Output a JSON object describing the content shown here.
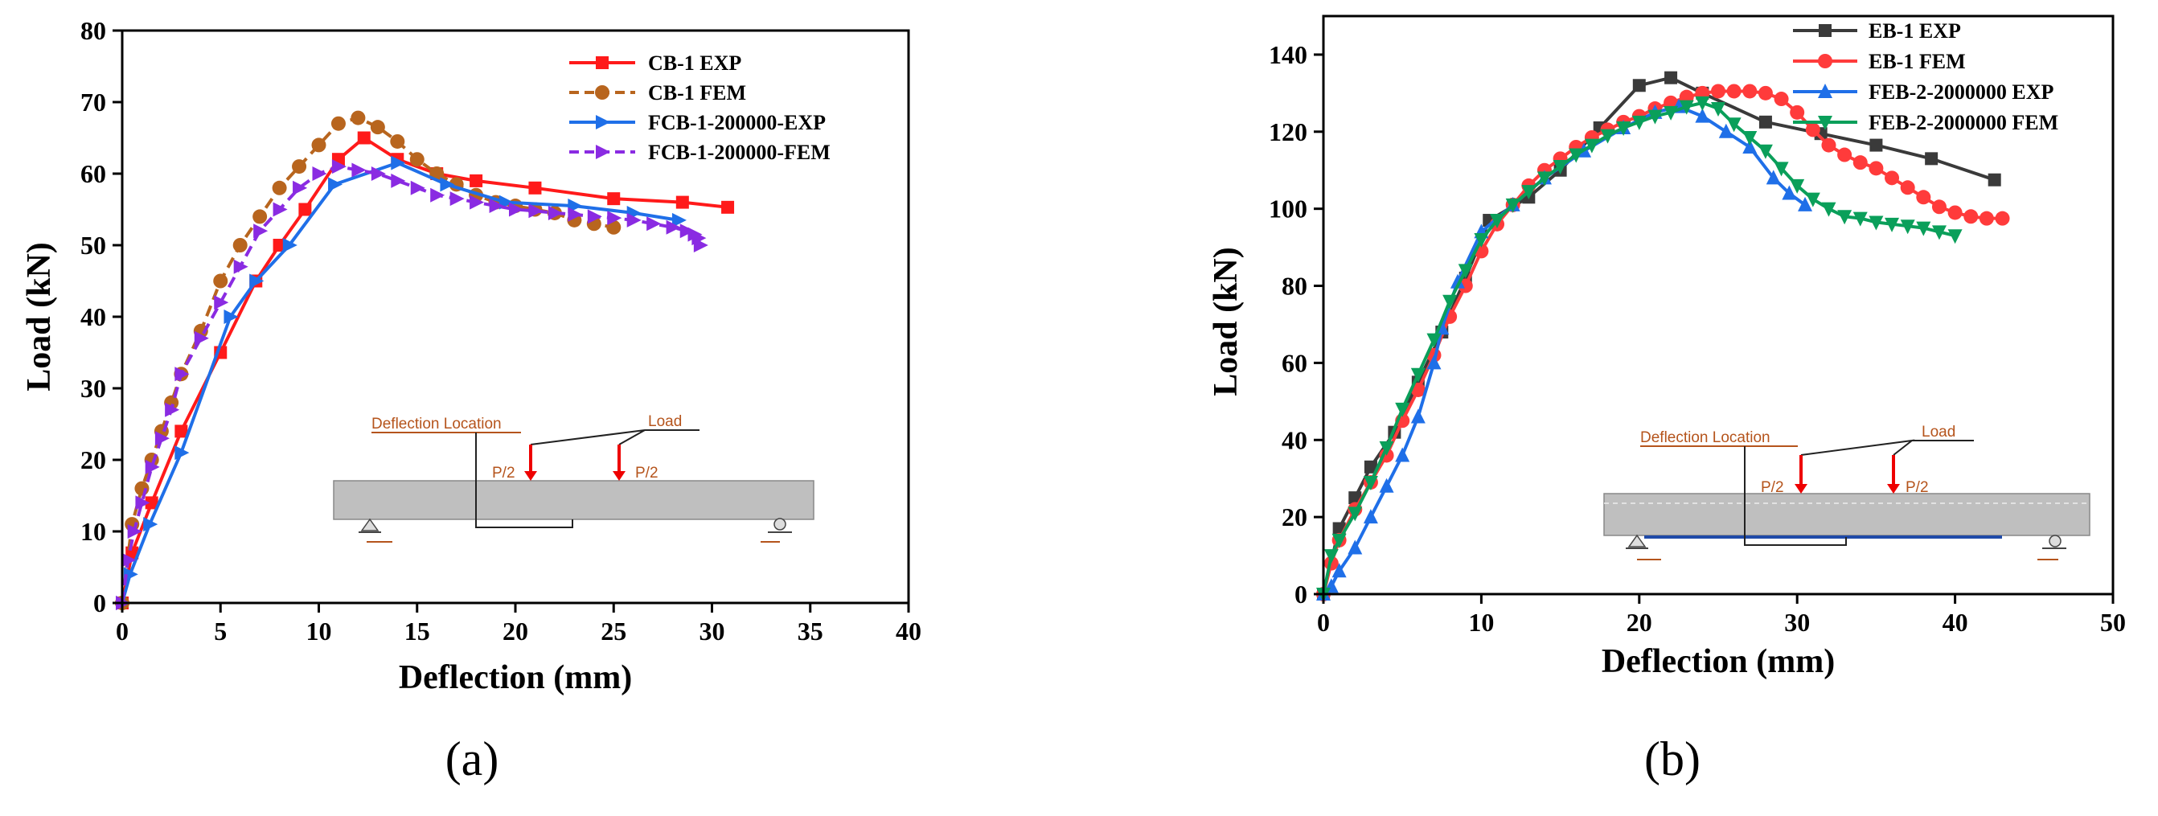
{
  "chart_data": [
    {
      "type": "line",
      "panel_label": "(a)",
      "xlabel": "Deflection (mm)",
      "ylabel": "Load (kN)",
      "xlim": [
        0,
        40
      ],
      "ylim": [
        0,
        80
      ],
      "xticks": [
        0,
        5,
        10,
        15,
        20,
        25,
        30,
        35,
        40
      ],
      "yticks": [
        0,
        10,
        20,
        30,
        40,
        50,
        60,
        70,
        80
      ],
      "legend_position": "top-right",
      "series": [
        {
          "name": "CB-1 EXP",
          "color": "#ff1a1a",
          "marker": "square",
          "dashed": false,
          "x": [
            0,
            0.5,
            1.5,
            3,
            5,
            6.8,
            8,
            9.3,
            11,
            12.3,
            14,
            16,
            18,
            21,
            25,
            28.5,
            30.8
          ],
          "y": [
            0,
            7,
            14,
            24,
            35,
            45,
            50,
            55,
            62,
            65,
            62,
            60,
            59,
            58,
            56.5,
            56,
            55.3
          ]
        },
        {
          "name": "CB-1 FEM",
          "color": "#b8651e",
          "marker": "circle",
          "dashed": true,
          "x": [
            0,
            0.5,
            1,
            1.5,
            2,
            2.5,
            3,
            4,
            5,
            6,
            7,
            8,
            9,
            10,
            11,
            12,
            13,
            14,
            15,
            16,
            17,
            18,
            19,
            20,
            21,
            22,
            23,
            24,
            25
          ],
          "y": [
            0,
            11,
            16,
            20,
            24,
            28,
            32,
            38,
            45,
            50,
            54,
            58,
            61,
            64,
            67,
            67.8,
            66.5,
            64.5,
            62,
            60,
            58.5,
            57,
            56,
            55.5,
            55,
            54.5,
            53.5,
            53,
            52.5
          ]
        },
        {
          "name": "FCB-1-200000-EXP",
          "color": "#1f6fe8",
          "marker": "triangle-right",
          "dashed": false,
          "x": [
            0,
            0.4,
            1.4,
            3,
            5.5,
            6.8,
            8.5,
            10.8,
            14,
            16.5,
            19.5,
            23,
            26,
            28.3
          ],
          "y": [
            0,
            4,
            11,
            21,
            40,
            45,
            50,
            58.5,
            61.5,
            58.5,
            56,
            55.5,
            54.5,
            53.5
          ]
        },
        {
          "name": "FCB-1-200000-FEM",
          "color": "#8a2be2",
          "marker": "triangle-right",
          "dashed": true,
          "x": [
            0,
            0.3,
            0.6,
            1,
            1.5,
            2,
            2.5,
            3,
            4,
            5,
            6,
            7,
            8,
            9,
            10,
            11,
            12,
            13,
            14,
            15,
            16,
            17,
            18,
            19,
            20,
            21,
            22,
            23,
            24,
            25,
            26,
            27,
            28,
            28.7,
            29.1,
            29.3,
            29.4
          ],
          "y": [
            0,
            6,
            10,
            14,
            19,
            23,
            27,
            32,
            37,
            42,
            47,
            52,
            55,
            58,
            60,
            61,
            60.5,
            60,
            59,
            58,
            57,
            56.5,
            56,
            55.5,
            55,
            54.8,
            54.5,
            54.3,
            54,
            53.8,
            53.5,
            53,
            52.5,
            52,
            51.5,
            51,
            50
          ]
        }
      ],
      "inset": {
        "deflection_label": "Deflection Location",
        "load_label": "Load",
        "p_half_label": "P/2"
      }
    },
    {
      "type": "line",
      "panel_label": "(b)",
      "xlabel": "Deflection (mm)",
      "ylabel": "Load (kN)",
      "xlim": [
        0,
        50
      ],
      "ylim": [
        0,
        150
      ],
      "xticks": [
        0,
        10,
        20,
        30,
        40,
        50
      ],
      "yticks": [
        0,
        20,
        40,
        60,
        80,
        100,
        120,
        140
      ],
      "legend_position": "top-right",
      "series": [
        {
          "name": "EB-1 EXP",
          "color": "#3a3a3a",
          "marker": "square",
          "dashed": false,
          "x": [
            0,
            1,
            2,
            3,
            4.5,
            6,
            7.5,
            9,
            10.5,
            13,
            15,
            17.5,
            20,
            22,
            24,
            28,
            31.5,
            35,
            38.5,
            42.5
          ],
          "y": [
            0,
            17,
            25,
            33,
            42,
            55,
            68,
            82,
            97,
            103,
            110,
            121,
            132,
            134,
            130,
            122.5,
            119.5,
            116.5,
            113,
            107.5
          ]
        },
        {
          "name": "EB-1 FEM",
          "color": "#ff3b3b",
          "marker": "circle",
          "dashed": false,
          "x": [
            0,
            0.5,
            1,
            2,
            3,
            4,
            5,
            6,
            7,
            8,
            9,
            10,
            11,
            12,
            13,
            14,
            15,
            16,
            17,
            18,
            19,
            20,
            21,
            22,
            23,
            24,
            25,
            26,
            27,
            28,
            29,
            30,
            31,
            32,
            33,
            34,
            35,
            36,
            37,
            38,
            39,
            40,
            41,
            42,
            43
          ],
          "y": [
            0,
            8,
            14,
            22,
            29,
            36,
            45,
            53,
            62,
            72,
            80,
            89,
            96,
            101,
            106,
            110,
            113,
            116,
            118.5,
            120.5,
            122.5,
            124,
            126,
            127.5,
            129,
            130,
            130.5,
            130.5,
            130.5,
            130,
            128.5,
            125,
            120.5,
            116.5,
            114,
            112,
            110.5,
            108,
            105.5,
            103,
            100.5,
            99,
            98,
            97.5,
            97.5
          ]
        },
        {
          "name": "FEB-2-2000000 EXP",
          "color": "#1f6fe8",
          "marker": "triangle-up",
          "dashed": false,
          "x": [
            0,
            0.5,
            1,
            2,
            3,
            4,
            5,
            6,
            7,
            7.5,
            8.5,
            10,
            12,
            14,
            16.5,
            19,
            21,
            22.5,
            24,
            25.5,
            27,
            28.5,
            29.5,
            30.5
          ],
          "y": [
            0,
            2,
            6,
            12,
            20,
            28,
            36,
            46,
            60,
            69,
            81,
            94,
            101,
            108,
            115,
            121,
            125,
            126.5,
            124,
            120,
            116,
            108,
            104,
            101
          ]
        },
        {
          "name": "FEB-2-2000000 FEM",
          "color": "#0a9f5a",
          "marker": "triangle-down",
          "dashed": false,
          "x": [
            0,
            0.5,
            1,
            2,
            3,
            4,
            5,
            6,
            7,
            8,
            9,
            10,
            11,
            12,
            13,
            14,
            15,
            16,
            17,
            18,
            19,
            20,
            21,
            22,
            23,
            24,
            25,
            26,
            27,
            28,
            29,
            30,
            31,
            32,
            33,
            34,
            35,
            36,
            37,
            38,
            39,
            40
          ],
          "y": [
            0,
            10,
            14,
            21,
            29,
            38,
            48,
            57,
            66,
            76,
            84,
            92,
            97,
            101,
            104.5,
            108,
            111,
            114,
            116.5,
            119,
            121,
            122.5,
            124,
            125,
            126.5,
            127.5,
            126,
            122,
            118.5,
            115,
            110.5,
            106,
            102.5,
            100,
            98,
            97.5,
            96.5,
            96,
            95.5,
            95,
            94,
            93
          ]
        }
      ],
      "inset": {
        "deflection_label": "Deflection Location",
        "load_label": "Load",
        "p_half_label": "P/2"
      }
    }
  ]
}
